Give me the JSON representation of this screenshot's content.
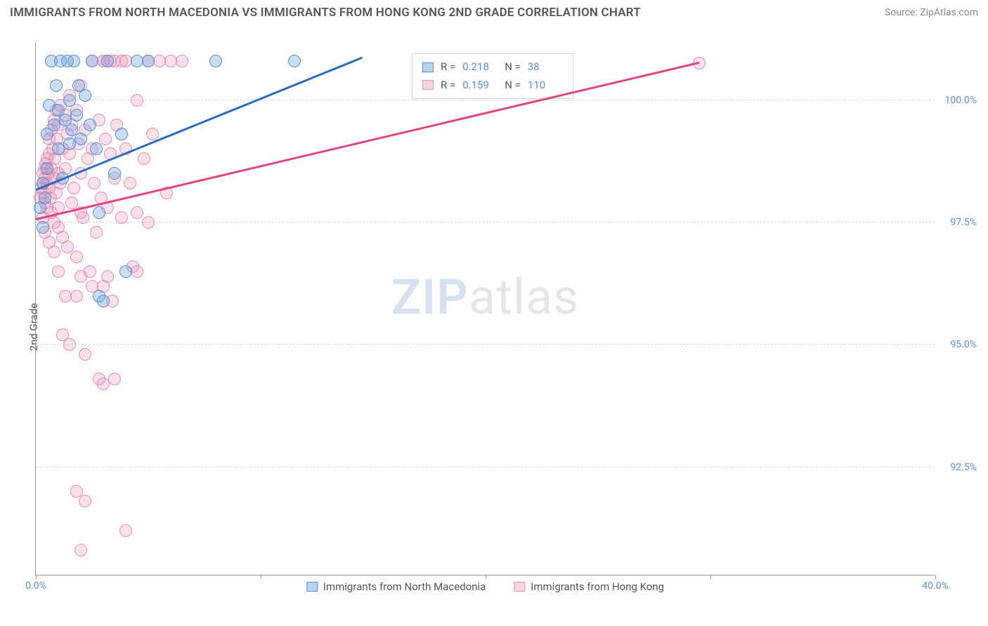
{
  "title": "IMMIGRANTS FROM NORTH MACEDONIA VS IMMIGRANTS FROM HONG KONG 2ND GRADE CORRELATION CHART",
  "source_label": "Source:",
  "source_name": "ZipAtlas.com",
  "ylabel": "2nd Grade",
  "watermark_zip": "ZIP",
  "watermark_atlas": "atlas",
  "chart": {
    "type": "scatter",
    "xlim": [
      0,
      40
    ],
    "ylim": [
      90.3,
      101.2
    ],
    "xticks": [
      0,
      10,
      20,
      30,
      40
    ],
    "xtick_labels": [
      "0.0%",
      "",
      "",
      "",
      "40.0%"
    ],
    "yticks": [
      92.5,
      95.0,
      97.5,
      100.0
    ],
    "ytick_labels": [
      "92.5%",
      "95.0%",
      "97.5%",
      "100.0%"
    ],
    "background_color": "#ffffff",
    "grid_color": "#d5d5d5",
    "axis_color": "#999999",
    "marker_size": 18,
    "series": [
      {
        "name": "Immigrants from North Macedonia",
        "color_fill": "rgba(100,158,220,0.35)",
        "color_stroke": "#5a8fd6",
        "trend_color": "#2d6bc0",
        "R": "0.218",
        "N": "38",
        "trend": {
          "x1": 0,
          "y1": 98.15,
          "x2": 14.5,
          "y2": 100.85
        },
        "points": [
          [
            0.3,
            98.3
          ],
          [
            0.4,
            98.0
          ],
          [
            0.5,
            98.6
          ],
          [
            0.5,
            99.3
          ],
          [
            0.6,
            99.9
          ],
          [
            0.7,
            100.8
          ],
          [
            0.8,
            99.5
          ],
          [
            0.9,
            100.3
          ],
          [
            1.0,
            99.0
          ],
          [
            1.0,
            99.8
          ],
          [
            1.1,
            100.8
          ],
          [
            1.2,
            98.4
          ],
          [
            1.3,
            99.6
          ],
          [
            1.4,
            100.8
          ],
          [
            1.5,
            99.1
          ],
          [
            1.5,
            100.0
          ],
          [
            1.6,
            99.4
          ],
          [
            1.7,
            100.8
          ],
          [
            1.8,
            99.7
          ],
          [
            1.9,
            100.3
          ],
          [
            2.0,
            99.2
          ],
          [
            2.2,
            100.1
          ],
          [
            2.4,
            99.5
          ],
          [
            2.5,
            100.8
          ],
          [
            2.7,
            99.0
          ],
          [
            2.8,
            97.7
          ],
          [
            2.8,
            96.0
          ],
          [
            3.0,
            95.9
          ],
          [
            3.2,
            100.8
          ],
          [
            3.5,
            98.5
          ],
          [
            3.8,
            99.3
          ],
          [
            4.0,
            96.5
          ],
          [
            4.5,
            100.8
          ],
          [
            5.0,
            100.8
          ],
          [
            8.0,
            100.8
          ],
          [
            11.5,
            100.8
          ],
          [
            0.2,
            97.8
          ],
          [
            0.3,
            97.4
          ]
        ]
      },
      {
        "name": "Immigrants from Hong Kong",
        "color_fill": "rgba(236,130,170,0.25)",
        "color_stroke": "#e590b5",
        "trend_color": "#e0477e",
        "R": "0.159",
        "N": "110",
        "trend": {
          "x1": 0,
          "y1": 97.55,
          "x2": 29.5,
          "y2": 100.75
        },
        "points": [
          [
            0.2,
            98.0
          ],
          [
            0.25,
            98.2
          ],
          [
            0.3,
            98.3
          ],
          [
            0.3,
            98.5
          ],
          [
            0.35,
            98.1
          ],
          [
            0.4,
            98.4
          ],
          [
            0.4,
            98.6
          ],
          [
            0.4,
            97.9
          ],
          [
            0.45,
            98.7
          ],
          [
            0.5,
            98.3
          ],
          [
            0.5,
            98.8
          ],
          [
            0.5,
            97.8
          ],
          [
            0.55,
            98.5
          ],
          [
            0.6,
            98.9
          ],
          [
            0.6,
            98.2
          ],
          [
            0.6,
            99.2
          ],
          [
            0.65,
            98.0
          ],
          [
            0.7,
            98.6
          ],
          [
            0.7,
            99.4
          ],
          [
            0.7,
            97.7
          ],
          [
            0.75,
            99.0
          ],
          [
            0.8,
            98.4
          ],
          [
            0.8,
            99.6
          ],
          [
            0.8,
            97.5
          ],
          [
            0.85,
            98.8
          ],
          [
            0.9,
            99.8
          ],
          [
            0.9,
            98.1
          ],
          [
            0.95,
            99.2
          ],
          [
            1.0,
            98.5
          ],
          [
            1.0,
            99.5
          ],
          [
            1.0,
            97.4
          ],
          [
            1.1,
            99.9
          ],
          [
            1.1,
            98.3
          ],
          [
            1.2,
            99.0
          ],
          [
            1.2,
            97.2
          ],
          [
            1.3,
            99.7
          ],
          [
            1.3,
            98.6
          ],
          [
            1.4,
            99.3
          ],
          [
            1.4,
            97.0
          ],
          [
            1.5,
            98.9
          ],
          [
            1.5,
            100.1
          ],
          [
            1.6,
            99.5
          ],
          [
            1.6,
            97.9
          ],
          [
            1.7,
            98.2
          ],
          [
            1.8,
            99.8
          ],
          [
            1.8,
            96.8
          ],
          [
            1.9,
            99.1
          ],
          [
            2.0,
            98.5
          ],
          [
            2.0,
            100.3
          ],
          [
            2.1,
            97.6
          ],
          [
            2.2,
            99.4
          ],
          [
            2.3,
            98.8
          ],
          [
            2.4,
            96.5
          ],
          [
            2.5,
            99.0
          ],
          [
            2.5,
            100.8
          ],
          [
            2.6,
            98.3
          ],
          [
            2.7,
            97.3
          ],
          [
            2.8,
            99.6
          ],
          [
            2.9,
            98.0
          ],
          [
            3.0,
            100.8
          ],
          [
            3.0,
            96.2
          ],
          [
            3.1,
            99.2
          ],
          [
            3.2,
            97.8
          ],
          [
            3.3,
            98.9
          ],
          [
            3.4,
            95.9
          ],
          [
            3.5,
            100.8
          ],
          [
            3.5,
            98.4
          ],
          [
            3.6,
            99.5
          ],
          [
            3.8,
            97.6
          ],
          [
            4.0,
            99.0
          ],
          [
            4.0,
            100.8
          ],
          [
            4.2,
            98.3
          ],
          [
            4.3,
            96.6
          ],
          [
            4.5,
            100.0
          ],
          [
            4.5,
            97.7
          ],
          [
            4.8,
            98.8
          ],
          [
            5.0,
            100.8
          ],
          [
            5.0,
            97.5
          ],
          [
            5.2,
            99.3
          ],
          [
            5.5,
            100.8
          ],
          [
            5.8,
            98.1
          ],
          [
            6.0,
            100.8
          ],
          [
            6.5,
            100.8
          ],
          [
            1.2,
            95.2
          ],
          [
            1.5,
            95.0
          ],
          [
            2.2,
            94.8
          ],
          [
            2.8,
            94.3
          ],
          [
            3.0,
            94.2
          ],
          [
            3.5,
            94.3
          ],
          [
            1.8,
            92.0
          ],
          [
            2.2,
            91.8
          ],
          [
            4.0,
            91.2
          ],
          [
            2.0,
            90.8
          ],
          [
            0.8,
            96.9
          ],
          [
            1.0,
            96.5
          ],
          [
            2.0,
            96.4
          ],
          [
            2.5,
            96.2
          ],
          [
            3.2,
            96.4
          ],
          [
            29.5,
            100.75
          ],
          [
            0.3,
            97.6
          ],
          [
            0.4,
            97.3
          ],
          [
            0.6,
            97.1
          ],
          [
            1.0,
            97.8
          ],
          [
            1.3,
            96.0
          ],
          [
            1.8,
            96.0
          ],
          [
            2.0,
            97.7
          ],
          [
            3.0,
            100.8
          ],
          [
            3.3,
            100.8
          ],
          [
            3.8,
            100.8
          ],
          [
            4.5,
            96.5
          ]
        ]
      }
    ]
  },
  "legend": {
    "r_label": "R =",
    "n_label": "N ="
  }
}
